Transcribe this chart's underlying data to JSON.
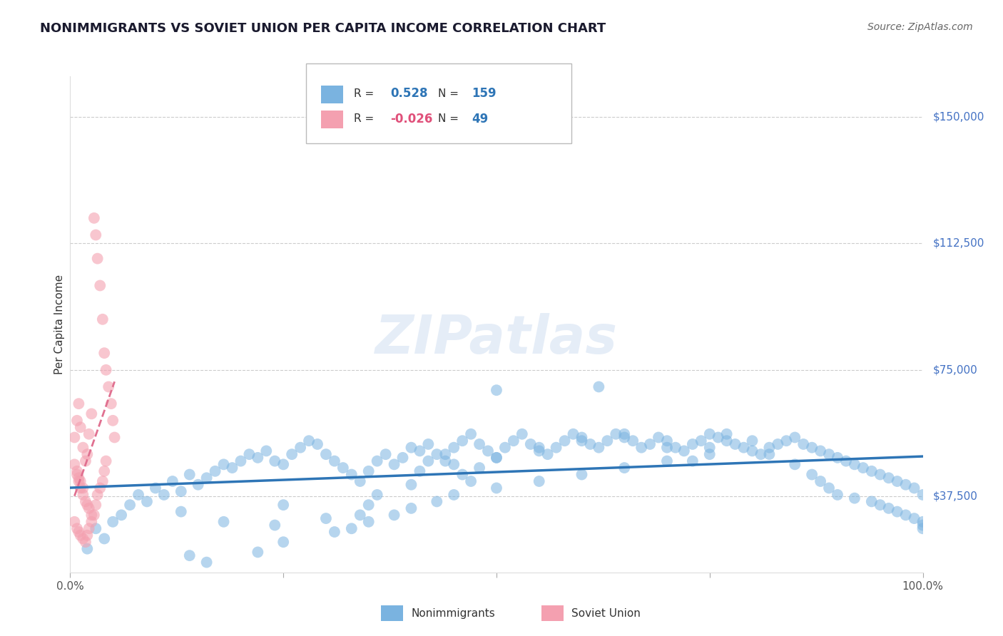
{
  "title": "NONIMMIGRANTS VS SOVIET UNION PER CAPITA INCOME CORRELATION CHART",
  "source": "Source: ZipAtlas.com",
  "ylabel": "Per Capita Income",
  "xlim": [
    0,
    1
  ],
  "ylim": [
    15000,
    162000
  ],
  "yticks": [
    37500,
    75000,
    112500,
    150000
  ],
  "ytick_labels": [
    "$37,500",
    "$75,000",
    "$112,500",
    "$150,000"
  ],
  "xtick_labels": [
    "0.0%",
    "100.0%"
  ],
  "bg_color": "#ffffff",
  "grid_color": "#cccccc",
  "series": [
    {
      "name": "Nonimmigrants",
      "R": "0.528",
      "N": "159",
      "color": "#7ab3e0",
      "trend_color": "#2e75b6"
    },
    {
      "name": "Soviet Union",
      "R": "-0.026",
      "N": "49",
      "color": "#f4a0b0",
      "trend_color": "#e07090"
    }
  ],
  "blue_points": [
    [
      0.02,
      22000
    ],
    [
      0.03,
      28000
    ],
    [
      0.04,
      25000
    ],
    [
      0.05,
      30000
    ],
    [
      0.06,
      32000
    ],
    [
      0.07,
      35000
    ],
    [
      0.08,
      38000
    ],
    [
      0.09,
      36000
    ],
    [
      0.1,
      40000
    ],
    [
      0.11,
      38000
    ],
    [
      0.12,
      42000
    ],
    [
      0.13,
      39000
    ],
    [
      0.14,
      44000
    ],
    [
      0.15,
      41000
    ],
    [
      0.16,
      43000
    ],
    [
      0.17,
      45000
    ],
    [
      0.18,
      47000
    ],
    [
      0.19,
      46000
    ],
    [
      0.2,
      48000
    ],
    [
      0.21,
      50000
    ],
    [
      0.22,
      49000
    ],
    [
      0.23,
      51000
    ],
    [
      0.24,
      48000
    ],
    [
      0.25,
      47000
    ],
    [
      0.26,
      50000
    ],
    [
      0.27,
      52000
    ],
    [
      0.28,
      54000
    ],
    [
      0.29,
      53000
    ],
    [
      0.3,
      50000
    ],
    [
      0.31,
      48000
    ],
    [
      0.32,
      46000
    ],
    [
      0.33,
      44000
    ],
    [
      0.34,
      42000
    ],
    [
      0.35,
      45000
    ],
    [
      0.36,
      48000
    ],
    [
      0.37,
      50000
    ],
    [
      0.38,
      47000
    ],
    [
      0.39,
      49000
    ],
    [
      0.4,
      52000
    ],
    [
      0.41,
      51000
    ],
    [
      0.42,
      53000
    ],
    [
      0.43,
      50000
    ],
    [
      0.44,
      48000
    ],
    [
      0.45,
      52000
    ],
    [
      0.46,
      54000
    ],
    [
      0.47,
      56000
    ],
    [
      0.48,
      53000
    ],
    [
      0.49,
      51000
    ],
    [
      0.5,
      49000
    ],
    [
      0.51,
      52000
    ],
    [
      0.52,
      54000
    ],
    [
      0.53,
      56000
    ],
    [
      0.54,
      53000
    ],
    [
      0.55,
      51000
    ],
    [
      0.56,
      50000
    ],
    [
      0.57,
      52000
    ],
    [
      0.58,
      54000
    ],
    [
      0.59,
      56000
    ],
    [
      0.6,
      55000
    ],
    [
      0.61,
      53000
    ],
    [
      0.62,
      52000
    ],
    [
      0.63,
      54000
    ],
    [
      0.64,
      56000
    ],
    [
      0.65,
      55000
    ],
    [
      0.66,
      54000
    ],
    [
      0.67,
      52000
    ],
    [
      0.68,
      53000
    ],
    [
      0.69,
      55000
    ],
    [
      0.7,
      54000
    ],
    [
      0.71,
      52000
    ],
    [
      0.72,
      51000
    ],
    [
      0.73,
      53000
    ],
    [
      0.74,
      54000
    ],
    [
      0.75,
      56000
    ],
    [
      0.76,
      55000
    ],
    [
      0.77,
      54000
    ],
    [
      0.78,
      53000
    ],
    [
      0.79,
      52000
    ],
    [
      0.8,
      51000
    ],
    [
      0.81,
      50000
    ],
    [
      0.82,
      52000
    ],
    [
      0.83,
      53000
    ],
    [
      0.84,
      54000
    ],
    [
      0.85,
      55000
    ],
    [
      0.86,
      53000
    ],
    [
      0.87,
      52000
    ],
    [
      0.88,
      51000
    ],
    [
      0.89,
      50000
    ],
    [
      0.9,
      49000
    ],
    [
      0.91,
      48000
    ],
    [
      0.92,
      47000
    ],
    [
      0.93,
      46000
    ],
    [
      0.94,
      45000
    ],
    [
      0.95,
      44000
    ],
    [
      0.96,
      43000
    ],
    [
      0.97,
      42000
    ],
    [
      0.98,
      41000
    ],
    [
      0.99,
      40000
    ],
    [
      1.0,
      38000
    ],
    [
      0.13,
      33000
    ],
    [
      0.18,
      30000
    ],
    [
      0.24,
      29000
    ],
    [
      0.25,
      35000
    ],
    [
      0.3,
      31000
    ],
    [
      0.33,
      28000
    ],
    [
      0.34,
      32000
    ],
    [
      0.35,
      35000
    ],
    [
      0.36,
      38000
    ],
    [
      0.4,
      41000
    ],
    [
      0.41,
      45000
    ],
    [
      0.42,
      48000
    ],
    [
      0.44,
      50000
    ],
    [
      0.45,
      47000
    ],
    [
      0.46,
      44000
    ],
    [
      0.47,
      42000
    ],
    [
      0.48,
      46000
    ],
    [
      0.5,
      49000
    ],
    [
      0.55,
      52000
    ],
    [
      0.6,
      54000
    ],
    [
      0.62,
      70000
    ],
    [
      0.65,
      56000
    ],
    [
      0.7,
      52000
    ],
    [
      0.73,
      48000
    ],
    [
      0.75,
      52000
    ],
    [
      0.77,
      56000
    ],
    [
      0.8,
      54000
    ],
    [
      0.82,
      50000
    ],
    [
      0.85,
      47000
    ],
    [
      0.87,
      44000
    ],
    [
      0.88,
      42000
    ],
    [
      0.89,
      40000
    ],
    [
      0.9,
      38000
    ],
    [
      0.92,
      37000
    ],
    [
      0.94,
      36000
    ],
    [
      0.95,
      35000
    ],
    [
      0.96,
      34000
    ],
    [
      0.97,
      33000
    ],
    [
      0.98,
      32000
    ],
    [
      0.99,
      31000
    ],
    [
      1.0,
      30000
    ],
    [
      1.0,
      29000
    ],
    [
      1.0,
      28000
    ],
    [
      0.5,
      69000
    ],
    [
      0.14,
      20000
    ],
    [
      0.16,
      18000
    ],
    [
      0.22,
      21000
    ],
    [
      0.25,
      24000
    ],
    [
      0.31,
      27000
    ],
    [
      0.35,
      30000
    ],
    [
      0.38,
      32000
    ],
    [
      0.4,
      34000
    ],
    [
      0.43,
      36000
    ],
    [
      0.45,
      38000
    ],
    [
      0.5,
      40000
    ],
    [
      0.55,
      42000
    ],
    [
      0.6,
      44000
    ],
    [
      0.65,
      46000
    ],
    [
      0.7,
      48000
    ],
    [
      0.75,
      50000
    ]
  ],
  "pink_points": [
    [
      0.005,
      55000
    ],
    [
      0.008,
      60000
    ],
    [
      0.01,
      65000
    ],
    [
      0.012,
      58000
    ],
    [
      0.015,
      52000
    ],
    [
      0.018,
      48000
    ],
    [
      0.02,
      50000
    ],
    [
      0.022,
      56000
    ],
    [
      0.025,
      62000
    ],
    [
      0.028,
      120000
    ],
    [
      0.03,
      115000
    ],
    [
      0.032,
      108000
    ],
    [
      0.035,
      100000
    ],
    [
      0.038,
      90000
    ],
    [
      0.04,
      80000
    ],
    [
      0.042,
      75000
    ],
    [
      0.045,
      70000
    ],
    [
      0.048,
      65000
    ],
    [
      0.05,
      60000
    ],
    [
      0.052,
      55000
    ],
    [
      0.005,
      47000
    ],
    [
      0.008,
      44000
    ],
    [
      0.01,
      42000
    ],
    [
      0.012,
      40000
    ],
    [
      0.015,
      38000
    ],
    [
      0.018,
      36000
    ],
    [
      0.02,
      35000
    ],
    [
      0.022,
      34000
    ],
    [
      0.025,
      32000
    ],
    [
      0.008,
      45000
    ],
    [
      0.01,
      43000
    ],
    [
      0.012,
      42000
    ],
    [
      0.015,
      40000
    ],
    [
      0.005,
      30000
    ],
    [
      0.008,
      28000
    ],
    [
      0.01,
      27000
    ],
    [
      0.012,
      26000
    ],
    [
      0.015,
      25000
    ],
    [
      0.018,
      24000
    ],
    [
      0.02,
      26000
    ],
    [
      0.022,
      28000
    ],
    [
      0.025,
      30000
    ],
    [
      0.028,
      32000
    ],
    [
      0.03,
      35000
    ],
    [
      0.032,
      38000
    ],
    [
      0.035,
      40000
    ],
    [
      0.038,
      42000
    ],
    [
      0.04,
      45000
    ],
    [
      0.042,
      48000
    ]
  ]
}
